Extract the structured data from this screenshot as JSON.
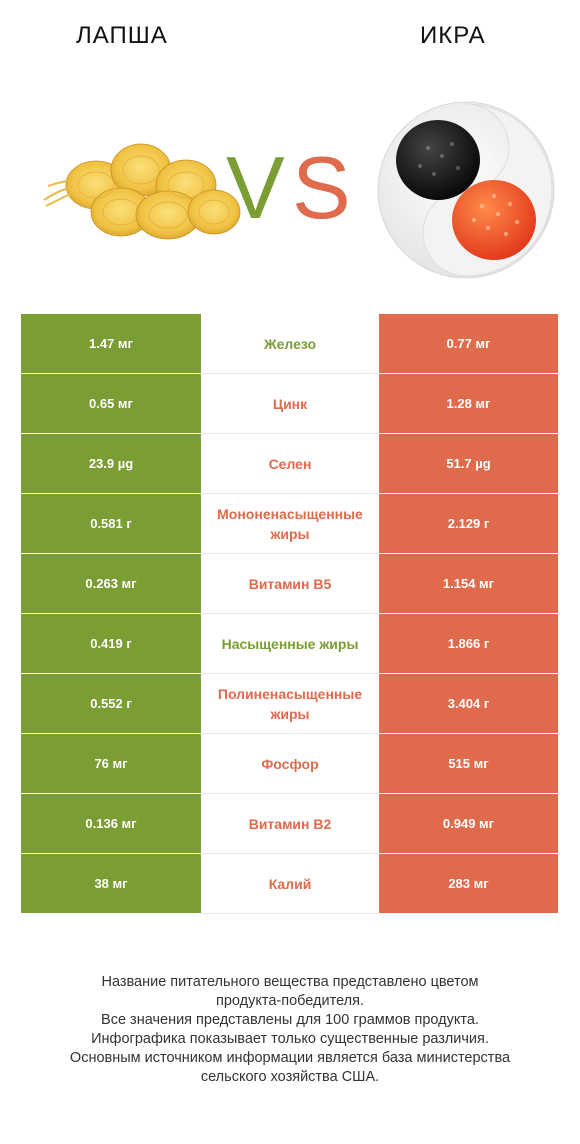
{
  "header": {
    "left_name": "ЛАПША",
    "right_name": "ИКРА",
    "vs_v": "V",
    "vs_s": "S"
  },
  "colors": {
    "left": "#7a9d34",
    "right": "#e06a4c"
  },
  "rows": [
    {
      "left": "1.47 мг",
      "nutrient": "Железо",
      "right": "0.77 мг",
      "winner": "left"
    },
    {
      "left": "0.65 мг",
      "nutrient": "Цинк",
      "right": "1.28 мг",
      "winner": "right"
    },
    {
      "left": "23.9 µg",
      "nutrient": "Селен",
      "right": "51.7 µg",
      "winner": "right"
    },
    {
      "left": "0.581 г",
      "nutrient": "Мононенасыщенные жиры",
      "right": "2.129 г",
      "winner": "right"
    },
    {
      "left": "0.263 мг",
      "nutrient": "Витамин B5",
      "right": "1.154 мг",
      "winner": "right"
    },
    {
      "left": "0.419 г",
      "nutrient": "Насыщенные жиры",
      "right": "1.866 г",
      "winner": "left"
    },
    {
      "left": "0.552 г",
      "nutrient": "Полиненасыщенные жиры",
      "right": "3.404 г",
      "winner": "right"
    },
    {
      "left": "76 мг",
      "nutrient": "Фосфор",
      "right": "515 мг",
      "winner": "right"
    },
    {
      "left": "0.136 мг",
      "nutrient": "Витамин B2",
      "right": "0.949 мг",
      "winner": "right"
    },
    {
      "left": "38 мг",
      "nutrient": "Калий",
      "right": "283 мг",
      "winner": "right"
    }
  ],
  "footer": {
    "line1": "Название питательного вещества представлено цветом",
    "line2": "продукта-победителя.",
    "line3": "Все значения представлены для 100 граммов продукта.",
    "line4": "Инфографика показывает только существенные различия.",
    "line5": "Основным источником информации является база министерства",
    "line6": "сельского хозяйства США."
  }
}
